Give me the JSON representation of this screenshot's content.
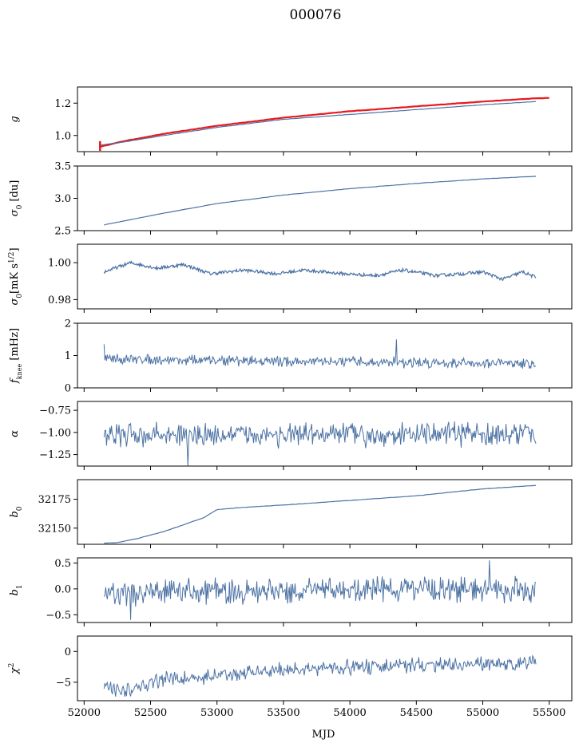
{
  "figure": {
    "title": "000076",
    "xlabel": "MJD"
  },
  "colors": {
    "series": "#4c72a4",
    "model": "#e8191e",
    "axis": "#000000"
  },
  "x_axis": {
    "ticks": [
      52000,
      52500,
      53000,
      53500,
      54000,
      54500,
      55000,
      55500
    ],
    "xlim": [
      51950,
      55670
    ]
  },
  "chart_data": [
    {
      "type": "line",
      "ylabel": "g",
      "ylabel_html": "<tspan font-style='italic'>g</tspan>",
      "ylim": [
        0.9,
        1.3
      ],
      "yticks": [
        1.0,
        1.2
      ],
      "yticklabels": [
        "1.0",
        "1.2"
      ],
      "series": [
        {
          "kind": "smooth",
          "color": "model",
          "width": 2.2,
          "points": [
            [
              52120,
              0.93
            ],
            [
              52300,
              0.965
            ],
            [
              52600,
              1.01
            ],
            [
              53000,
              1.06
            ],
            [
              53500,
              1.11
            ],
            [
              54000,
              1.15
            ],
            [
              54500,
              1.18
            ],
            [
              55000,
              1.21
            ],
            [
              55400,
              1.23
            ],
            [
              55500,
              1.232
            ]
          ]
        },
        {
          "kind": "smooth",
          "color": "series",
          "width": 1.2,
          "points": [
            [
              52120,
              0.94
            ],
            [
              52300,
              0.96
            ],
            [
              52600,
              1.0
            ],
            [
              53000,
              1.05
            ],
            [
              53500,
              1.1
            ],
            [
              54000,
              1.13
            ],
            [
              54500,
              1.16
            ],
            [
              55000,
              1.19
            ],
            [
              55400,
              1.21
            ]
          ]
        }
      ],
      "errorbar": {
        "x": 52120,
        "y": 0.935,
        "err": 0.03
      }
    },
    {
      "type": "line",
      "ylabel": "σ0 [du]",
      "ylabel_html": "<tspan font-style='italic'>σ</tspan><tspan baseline-shift='sub' font-size='9'>0</tspan> [du]",
      "ylim": [
        2.5,
        3.5
      ],
      "yticks": [
        2.5,
        3.0,
        3.5
      ],
      "yticklabels": [
        "2.5",
        "3.0",
        "3.5"
      ],
      "series": [
        {
          "kind": "smooth",
          "color": "series",
          "width": 1.2,
          "points": [
            [
              52150,
              2.59
            ],
            [
              52300,
              2.65
            ],
            [
              52600,
              2.77
            ],
            [
              53000,
              2.92
            ],
            [
              53500,
              3.05
            ],
            [
              54000,
              3.15
            ],
            [
              54500,
              3.23
            ],
            [
              55000,
              3.3
            ],
            [
              55400,
              3.34
            ]
          ]
        }
      ]
    },
    {
      "type": "line",
      "ylabel": "σ0 [mK s^1/2]",
      "ylabel_html": "<tspan font-style='italic'>σ</tspan><tspan baseline-shift='sub' font-size='9'>0</tspan><tspan>[mK s</tspan><tspan baseline-shift='super' font-size='9'>1/2</tspan><tspan>]</tspan>",
      "ylim": [
        0.975,
        1.01
      ],
      "yticks": [
        0.98,
        1.0
      ],
      "yticklabels": [
        "0.98",
        "1.00"
      ],
      "series": [
        {
          "kind": "wave",
          "color": "series",
          "width": 1.2,
          "points": [
            [
              52150,
              0.995
            ],
            [
              52350,
              1.0
            ],
            [
              52550,
              0.997
            ],
            [
              52750,
              0.999
            ],
            [
              52950,
              0.994
            ],
            [
              53200,
              0.996
            ],
            [
              53450,
              0.994
            ],
            [
              53650,
              0.996
            ],
            [
              53950,
              0.994
            ],
            [
              54200,
              0.993
            ],
            [
              54400,
              0.996
            ],
            [
              54650,
              0.993
            ],
            [
              54850,
              0.994
            ],
            [
              55000,
              0.995
            ],
            [
              55150,
              0.991
            ],
            [
              55300,
              0.995
            ],
            [
              55400,
              0.992
            ]
          ]
        }
      ]
    },
    {
      "type": "line",
      "ylabel": "fknee [mHz]",
      "ylabel_html": "<tspan font-style='italic'>f</tspan><tspan baseline-shift='sub' font-size='8'>knee</tspan><tspan> [mHz]</tspan>",
      "ylim": [
        0,
        2
      ],
      "yticks": [
        0,
        1,
        2
      ],
      "yticklabels": [
        "0",
        "1",
        "2"
      ],
      "series": [
        {
          "kind": "noise",
          "color": "series",
          "width": 1.0,
          "base": [
            [
              52150,
              0.9
            ],
            [
              53000,
              0.85
            ],
            [
              54000,
              0.8
            ],
            [
              55400,
              0.75
            ]
          ],
          "amp": 0.12,
          "spikes": [
            [
              52150,
              1.35
            ],
            [
              54350,
              1.5
            ]
          ]
        }
      ]
    },
    {
      "type": "line",
      "ylabel": "α",
      "ylabel_html": "<tspan font-style='italic'>α</tspan>",
      "ylim": [
        -1.38,
        -0.65
      ],
      "yticks": [
        -1.25,
        -1.0,
        -0.75
      ],
      "yticklabels": [
        "−1.25",
        "−1.00",
        "−0.75"
      ],
      "series": [
        {
          "kind": "noise",
          "color": "series",
          "width": 1.0,
          "base": [
            [
              52150,
              -1.03
            ],
            [
              55400,
              -1.02
            ]
          ],
          "amp": 0.1,
          "spikes": [
            [
              52780,
              -1.38
            ]
          ]
        }
      ]
    },
    {
      "type": "line",
      "ylabel": "b0",
      "ylabel_html": "<tspan font-style='italic'>b</tspan><tspan baseline-shift='sub' font-size='9'>0</tspan>",
      "ylim": [
        32136,
        32192
      ],
      "yticks": [
        32150,
        32175
      ],
      "yticklabels": [
        "32150",
        "32175"
      ],
      "series": [
        {
          "kind": "smooth",
          "color": "series",
          "width": 1.2,
          "points": [
            [
              52150,
              32137
            ],
            [
              52250,
              32137.5
            ],
            [
              52400,
              32141
            ],
            [
              52600,
              32147
            ],
            [
              52800,
              32155
            ],
            [
              52900,
              32159
            ],
            [
              53000,
              32166
            ],
            [
              53200,
              32168
            ],
            [
              53500,
              32170
            ],
            [
              54000,
              32174
            ],
            [
              54500,
              32178
            ],
            [
              55000,
              32184
            ],
            [
              55400,
              32187
            ]
          ]
        }
      ]
    },
    {
      "type": "line",
      "ylabel": "b1",
      "ylabel_html": "<tspan font-style='italic'>b</tspan><tspan baseline-shift='sub' font-size='9'>1</tspan>",
      "ylim": [
        -0.65,
        0.6
      ],
      "yticks": [
        -0.5,
        0.0,
        0.5
      ],
      "yticklabels": [
        "−0.5",
        "0.0",
        "0.5"
      ],
      "series": [
        {
          "kind": "noise",
          "color": "series",
          "width": 1.0,
          "base": [
            [
              52150,
              -0.1
            ],
            [
              53000,
              -0.05
            ],
            [
              54000,
              0.0
            ],
            [
              55400,
              -0.02
            ]
          ],
          "amp": 0.18,
          "spikes": [
            [
              55050,
              0.55
            ],
            [
              52350,
              -0.6
            ]
          ]
        }
      ]
    },
    {
      "type": "line",
      "ylabel": "χ2",
      "ylabel_html": "<tspan font-style='italic'>χ</tspan><tspan baseline-shift='super' font-size='9'>2</tspan>",
      "ylim": [
        -8,
        2.5
      ],
      "yticks": [
        -5,
        0
      ],
      "yticklabels": [
        "−5",
        "0"
      ],
      "series": [
        {
          "kind": "noise",
          "color": "series",
          "width": 1.0,
          "base": [
            [
              52150,
              -5.5
            ],
            [
              52300,
              -6.5
            ],
            [
              52600,
              -4.5
            ],
            [
              53000,
              -4
            ],
            [
              53500,
              -3
            ],
            [
              54000,
              -2.5
            ],
            [
              54500,
              -2.3
            ],
            [
              55000,
              -2
            ],
            [
              55400,
              -2
            ]
          ],
          "amp": 0.9,
          "spikes": []
        }
      ]
    }
  ]
}
